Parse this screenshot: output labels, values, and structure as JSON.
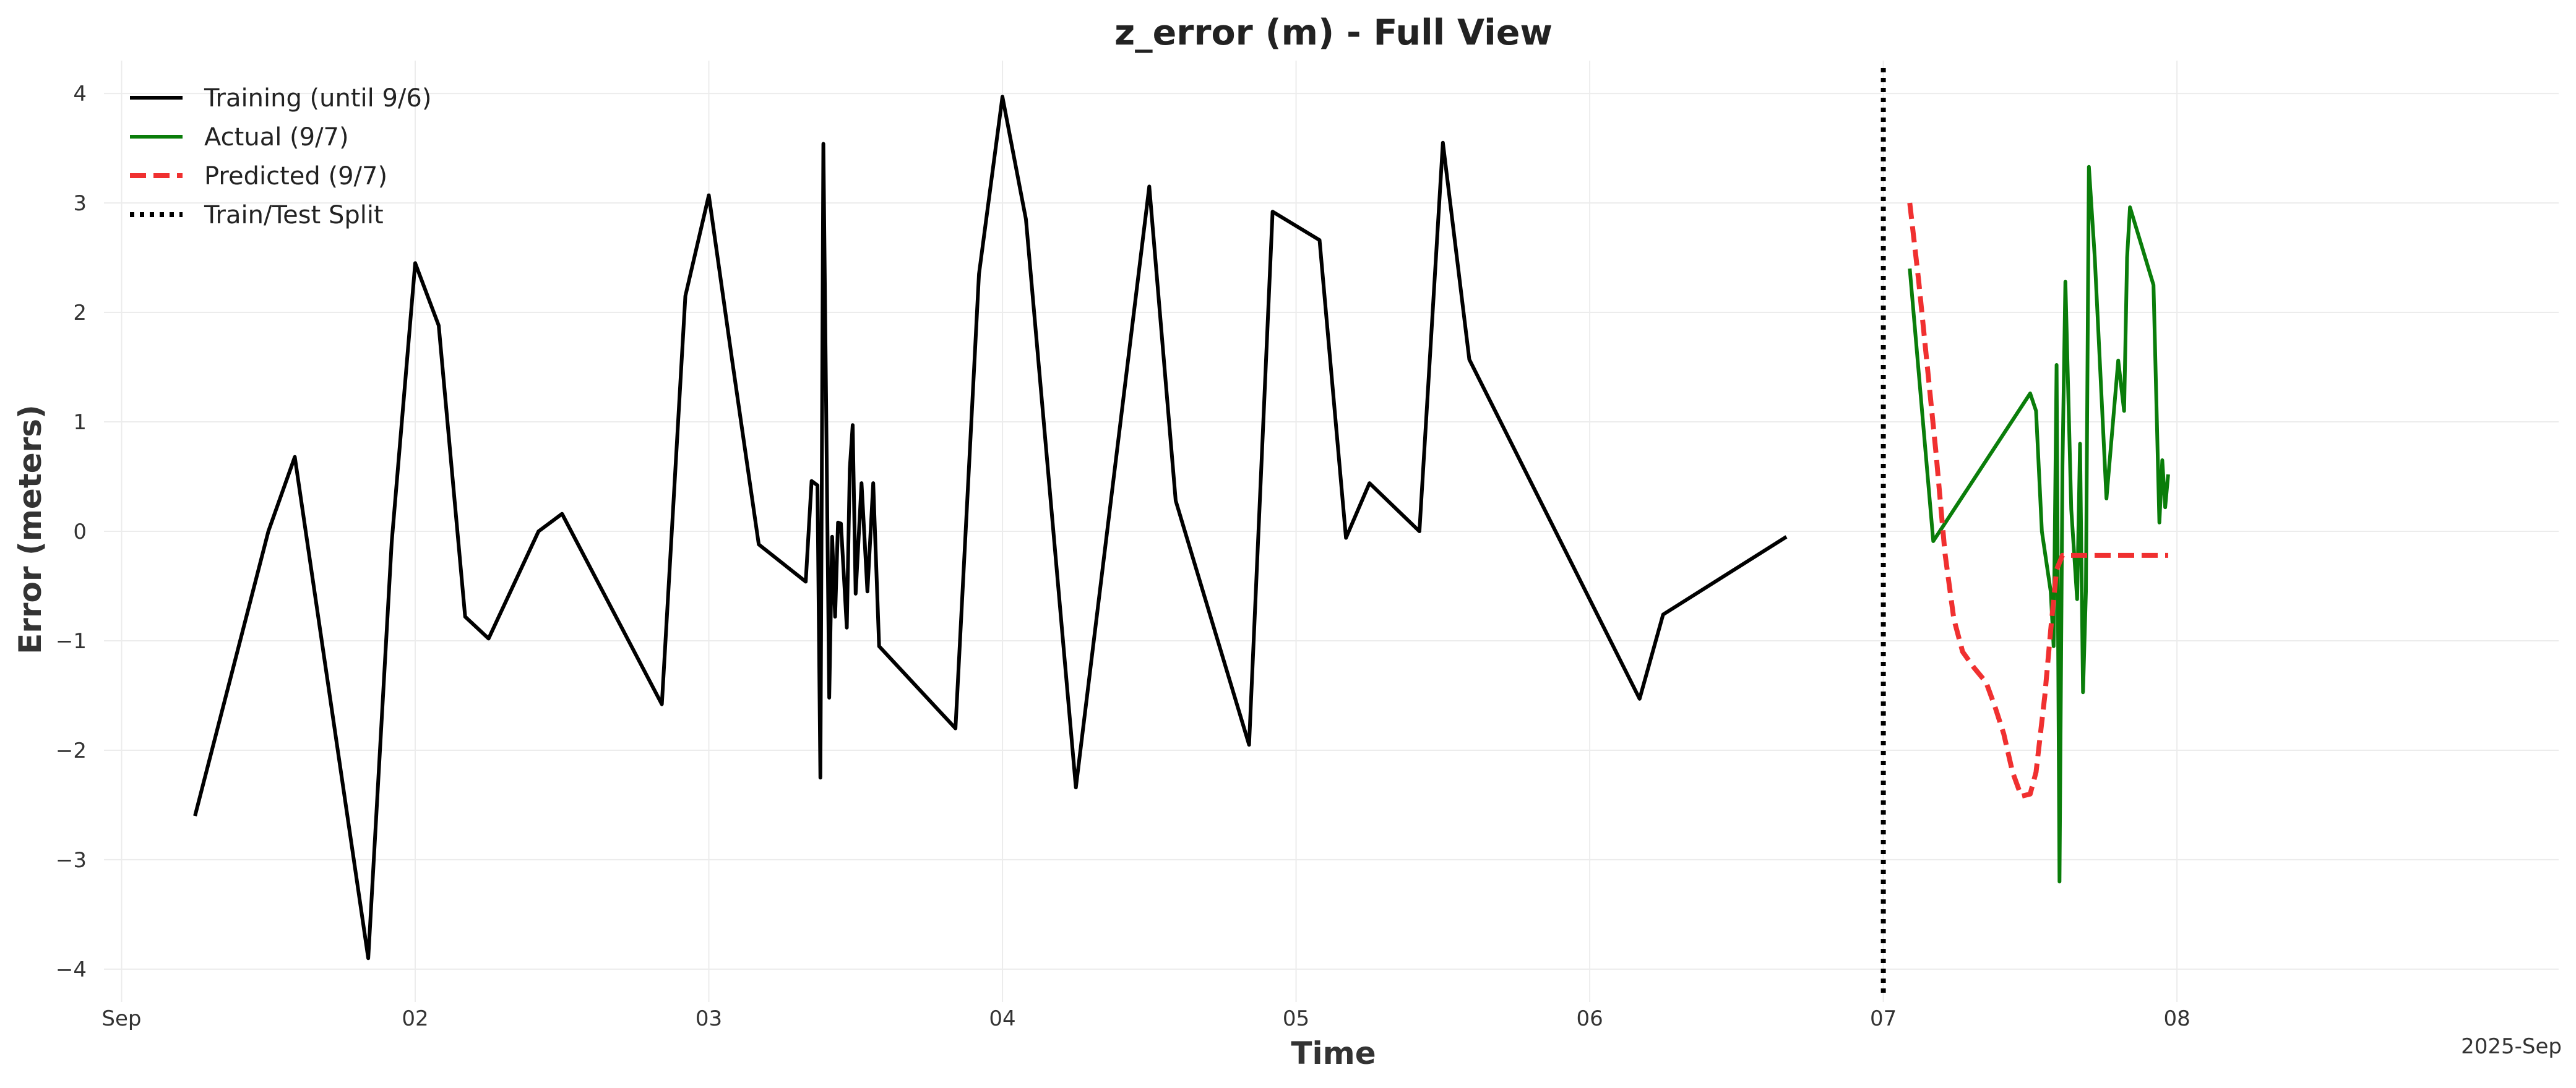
{
  "chart_data": {
    "type": "line",
    "title": "z_error (m) - Full View",
    "xlabel": "Time",
    "ylabel": "Error (meters)",
    "x_ticks": [
      "Sep",
      "02",
      "03",
      "04",
      "05",
      "06",
      "07",
      "08"
    ],
    "x_offset_label": "2025-Sep",
    "x_tick_days": [
      1,
      2,
      3,
      4,
      5,
      6,
      7,
      8
    ],
    "y_ticks": [
      "−4",
      "−3",
      "−2",
      "−1",
      "0",
      "1",
      "2",
      "3",
      "4"
    ],
    "y_tick_values": [
      -4,
      -3,
      -2,
      -1,
      0,
      1,
      2,
      3,
      4
    ],
    "xlim": [
      0.94,
      9.3
    ],
    "ylim": [
      -4.3,
      4.3
    ],
    "grid": true,
    "legend_position": "top-left",
    "series": [
      {
        "name": "Training (until 9/6)",
        "color": "#000000",
        "style": "solid",
        "points": [
          [
            1.25,
            -2.6
          ],
          [
            1.5,
            0.0
          ],
          [
            1.59,
            0.68
          ],
          [
            1.84,
            -3.9
          ],
          [
            1.92,
            -0.1
          ],
          [
            2.0,
            2.45
          ],
          [
            2.08,
            1.88
          ],
          [
            2.17,
            -0.78
          ],
          [
            2.25,
            -0.98
          ],
          [
            2.42,
            0.0
          ],
          [
            2.5,
            0.16
          ],
          [
            2.84,
            -1.58
          ],
          [
            2.92,
            2.15
          ],
          [
            3.0,
            3.07
          ],
          [
            3.08,
            1.55
          ],
          [
            3.17,
            -0.12
          ],
          [
            3.33,
            -0.46
          ],
          [
            3.35,
            0.46
          ],
          [
            3.37,
            0.42
          ],
          [
            3.38,
            -2.25
          ],
          [
            3.39,
            3.54
          ],
          [
            3.41,
            -1.52
          ],
          [
            3.42,
            -0.05
          ],
          [
            3.43,
            -0.78
          ],
          [
            3.44,
            0.08
          ],
          [
            3.45,
            0.07
          ],
          [
            3.47,
            -0.88
          ],
          [
            3.48,
            0.57
          ],
          [
            3.49,
            0.97
          ],
          [
            3.5,
            -0.57
          ],
          [
            3.52,
            0.44
          ],
          [
            3.54,
            -0.55
          ],
          [
            3.56,
            0.44
          ],
          [
            3.58,
            -1.05
          ],
          [
            3.84,
            -1.8
          ],
          [
            3.92,
            2.35
          ],
          [
            4.0,
            3.97
          ],
          [
            4.08,
            2.85
          ],
          [
            4.25,
            -2.34
          ],
          [
            4.5,
            3.15
          ],
          [
            4.59,
            0.28
          ],
          [
            4.84,
            -1.95
          ],
          [
            4.92,
            2.92
          ],
          [
            5.08,
            2.66
          ],
          [
            5.17,
            -0.06
          ],
          [
            5.25,
            0.44
          ],
          [
            5.42,
            0.0
          ],
          [
            5.5,
            3.55
          ],
          [
            5.59,
            1.57
          ],
          [
            6.17,
            -1.53
          ],
          [
            6.25,
            -0.76
          ],
          [
            6.67,
            -0.05
          ]
        ]
      },
      {
        "name": "Actual (9/7)",
        "color": "#0a7d0a",
        "style": "solid",
        "points": [
          [
            7.09,
            2.4
          ],
          [
            7.17,
            -0.09
          ],
          [
            7.5,
            1.26
          ],
          [
            7.52,
            1.1
          ],
          [
            7.54,
            0.0
          ],
          [
            7.57,
            -0.55
          ],
          [
            7.58,
            -1.05
          ],
          [
            7.59,
            1.52
          ],
          [
            7.6,
            -3.2
          ],
          [
            7.61,
            0.6
          ],
          [
            7.62,
            2.28
          ],
          [
            7.64,
            0.2
          ],
          [
            7.66,
            -0.62
          ],
          [
            7.67,
            0.8
          ],
          [
            7.68,
            -1.47
          ],
          [
            7.69,
            -0.55
          ],
          [
            7.7,
            3.33
          ],
          [
            7.72,
            2.5
          ],
          [
            7.76,
            0.3
          ],
          [
            7.8,
            1.56
          ],
          [
            7.82,
            1.1
          ],
          [
            7.83,
            2.5
          ],
          [
            7.84,
            2.96
          ],
          [
            7.92,
            2.25
          ],
          [
            7.94,
            0.08
          ],
          [
            7.95,
            0.65
          ],
          [
            7.96,
            0.22
          ],
          [
            7.97,
            0.52
          ]
        ]
      },
      {
        "name": "Predicted (9/7)",
        "color": "#f03030",
        "style": "dashed",
        "points": [
          [
            7.09,
            3.0
          ],
          [
            7.12,
            2.3
          ],
          [
            7.15,
            1.5
          ],
          [
            7.18,
            0.7
          ],
          [
            7.21,
            -0.2
          ],
          [
            7.24,
            -0.8
          ],
          [
            7.27,
            -1.1
          ],
          [
            7.31,
            -1.25
          ],
          [
            7.35,
            -1.38
          ],
          [
            7.38,
            -1.6
          ],
          [
            7.41,
            -1.85
          ],
          [
            7.44,
            -2.2
          ],
          [
            7.47,
            -2.42
          ],
          [
            7.5,
            -2.4
          ],
          [
            7.52,
            -2.2
          ],
          [
            7.55,
            -1.5
          ],
          [
            7.57,
            -0.9
          ],
          [
            7.59,
            -0.35
          ],
          [
            7.61,
            -0.22
          ],
          [
            7.7,
            -0.22
          ],
          [
            7.8,
            -0.22
          ],
          [
            7.97,
            -0.22
          ]
        ]
      },
      {
        "name": "Train/Test Split",
        "color": "#000000",
        "style": "dotted",
        "vertical_x": 7.0
      }
    ]
  }
}
